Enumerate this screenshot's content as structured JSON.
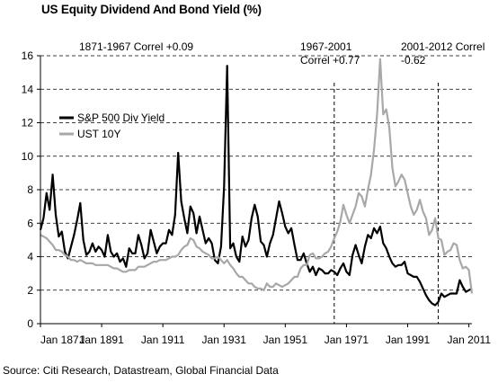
{
  "title": "US Equity Dividend And Bond Yield (%)",
  "source": "Source: Citi Research, Datastream, Global Financial Data",
  "chart_data": {
    "type": "line",
    "xlim": [
      1871,
      2012
    ],
    "ylim": [
      0,
      16
    ],
    "y_ticks": [
      0,
      2,
      4,
      6,
      8,
      10,
      12,
      14,
      16
    ],
    "x_ticks": [
      1871,
      1891,
      1911,
      1931,
      1951,
      1971,
      1991,
      2011
    ],
    "x_tick_labels": [
      "Jan 1871",
      "Jan 1891",
      "Jan 1911",
      "Jan 1931",
      "Jan 1951",
      "Jan 1971",
      "Jan 1991",
      "Jan 2011"
    ],
    "grid": "horizontal dashed",
    "legend_position": "upper-left",
    "annotations": [
      {
        "lines": [
          "1871-1967 Correl +0.09"
        ]
      },
      {
        "lines": [
          "1967-2001",
          "Correl +0.77"
        ]
      },
      {
        "lines": [
          "2001-2012 Correl",
          "-0.62"
        ]
      }
    ],
    "vlines": [
      1967,
      2001
    ],
    "colors": {
      "div": "#000000",
      "ust": "#a8a8a8",
      "grid": "#000000"
    },
    "series": [
      {
        "name": "S&P 500 Div Yield",
        "key": "div",
        "x": [
          1871,
          1872,
          1873,
          1874,
          1875,
          1876,
          1877,
          1878,
          1879,
          1880,
          1881,
          1882,
          1883,
          1884,
          1885,
          1886,
          1887,
          1888,
          1889,
          1890,
          1891,
          1892,
          1893,
          1894,
          1895,
          1896,
          1897,
          1898,
          1899,
          1900,
          1901,
          1902,
          1903,
          1904,
          1905,
          1906,
          1907,
          1908,
          1909,
          1910,
          1911,
          1912,
          1913,
          1914,
          1915,
          1916,
          1917,
          1918,
          1919,
          1920,
          1921,
          1922,
          1923,
          1924,
          1925,
          1926,
          1927,
          1928,
          1929,
          1930,
          1931,
          1932,
          1933,
          1934,
          1935,
          1936,
          1937,
          1938,
          1939,
          1940,
          1941,
          1942,
          1943,
          1944,
          1945,
          1946,
          1947,
          1948,
          1949,
          1950,
          1951,
          1952,
          1953,
          1954,
          1955,
          1956,
          1957,
          1958,
          1959,
          1960,
          1961,
          1962,
          1963,
          1964,
          1965,
          1966,
          1967,
          1968,
          1969,
          1970,
          1971,
          1972,
          1973,
          1974,
          1975,
          1976,
          1977,
          1978,
          1979,
          1980,
          1981,
          1982,
          1983,
          1984,
          1985,
          1986,
          1987,
          1988,
          1989,
          1990,
          1991,
          1992,
          1993,
          1994,
          1995,
          1996,
          1997,
          1998,
          1999,
          2000,
          2001,
          2002,
          2003,
          2004,
          2005,
          2006,
          2007,
          2008,
          2009,
          2010,
          2011,
          2012
        ],
        "values": [
          5.6,
          6.3,
          7.8,
          6.8,
          8.9,
          6.5,
          5.2,
          5.5,
          4.3,
          3.9,
          4.6,
          5.3,
          6.2,
          7.2,
          5.0,
          4.1,
          4.3,
          4.8,
          4.3,
          4.6,
          4.4,
          4.0,
          5.3,
          4.3,
          4.0,
          4.2,
          3.7,
          3.9,
          3.4,
          4.5,
          4.2,
          4.2,
          5.3,
          4.7,
          3.9,
          4.2,
          5.6,
          4.9,
          4.2,
          4.6,
          4.8,
          4.8,
          5.6,
          5.3,
          6.5,
          10.2,
          7.3,
          6.3,
          5.4,
          7.0,
          6.6,
          5.4,
          6.4,
          5.6,
          4.8,
          5.1,
          4.8,
          3.8,
          3.6,
          4.6,
          8.2,
          15.4,
          4.5,
          4.8,
          4.0,
          3.7,
          5.2,
          4.6,
          5.0,
          6.3,
          7.1,
          6.4,
          4.9,
          4.7,
          4.0,
          4.8,
          5.3,
          6.3,
          7.3,
          6.6,
          5.8,
          5.4,
          5.7,
          4.7,
          3.8,
          3.8,
          4.2,
          3.6,
          3.1,
          3.4,
          2.9,
          3.3,
          3.2,
          3.0,
          3.0,
          3.2,
          3.1,
          2.9,
          3.3,
          3.6,
          3.1,
          2.9,
          4.1,
          4.7,
          4.1,
          3.6,
          4.6,
          5.3,
          5.1,
          5.7,
          5.4,
          5.8,
          4.8,
          4.5,
          4.0,
          3.6,
          3.4,
          3.5,
          3.5,
          3.7,
          3.0,
          2.9,
          2.8,
          2.8,
          2.5,
          2.1,
          1.7,
          1.4,
          1.2,
          1.1,
          1.3,
          1.8,
          1.6,
          1.7,
          1.8,
          1.8,
          1.8,
          2.6,
          2.2,
          1.9,
          2.0,
          2.1
        ]
      },
      {
        "name": "UST 10Y",
        "key": "ust",
        "x": [
          1871,
          1872,
          1873,
          1874,
          1875,
          1876,
          1877,
          1878,
          1879,
          1880,
          1881,
          1882,
          1883,
          1884,
          1885,
          1886,
          1887,
          1888,
          1889,
          1890,
          1891,
          1892,
          1893,
          1894,
          1895,
          1896,
          1897,
          1898,
          1899,
          1900,
          1901,
          1902,
          1903,
          1904,
          1905,
          1906,
          1907,
          1908,
          1909,
          1910,
          1911,
          1912,
          1913,
          1914,
          1915,
          1916,
          1917,
          1918,
          1919,
          1920,
          1921,
          1922,
          1923,
          1924,
          1925,
          1926,
          1927,
          1928,
          1929,
          1930,
          1931,
          1932,
          1933,
          1934,
          1935,
          1936,
          1937,
          1938,
          1939,
          1940,
          1941,
          1942,
          1943,
          1944,
          1945,
          1946,
          1947,
          1948,
          1949,
          1950,
          1951,
          1952,
          1953,
          1954,
          1955,
          1956,
          1957,
          1958,
          1959,
          1960,
          1961,
          1962,
          1963,
          1964,
          1965,
          1966,
          1967,
          1968,
          1969,
          1970,
          1971,
          1972,
          1973,
          1974,
          1975,
          1976,
          1977,
          1978,
          1979,
          1980,
          1981,
          1982,
          1983,
          1984,
          1985,
          1986,
          1987,
          1988,
          1989,
          1990,
          1991,
          1992,
          1993,
          1994,
          1995,
          1996,
          1997,
          1998,
          1999,
          2000,
          2001,
          2002,
          2003,
          2004,
          2005,
          2006,
          2007,
          2008,
          2009,
          2010,
          2011,
          2012
        ],
        "values": [
          5.3,
          5.2,
          5.1,
          4.9,
          4.7,
          4.4,
          4.4,
          4.3,
          4.1,
          4.0,
          3.8,
          3.8,
          3.7,
          3.8,
          3.7,
          3.6,
          3.6,
          3.6,
          3.5,
          3.5,
          3.5,
          3.5,
          3.5,
          3.4,
          3.3,
          3.3,
          3.2,
          3.1,
          3.1,
          3.2,
          3.2,
          3.2,
          3.4,
          3.4,
          3.4,
          3.5,
          3.6,
          3.7,
          3.7,
          3.8,
          3.8,
          3.8,
          3.9,
          4.0,
          4.0,
          4.1,
          4.4,
          4.6,
          4.7,
          5.1,
          5.0,
          4.6,
          4.5,
          4.3,
          4.2,
          4.1,
          3.9,
          3.9,
          4.0,
          3.8,
          3.6,
          3.8,
          3.5,
          3.3,
          3.0,
          2.8,
          2.8,
          2.6,
          2.4,
          2.4,
          2.2,
          2.1,
          2.1,
          2.0,
          2.4,
          2.2,
          2.2,
          2.4,
          2.3,
          2.2,
          2.3,
          2.4,
          2.6,
          2.8,
          2.8,
          3.3,
          3.5,
          3.5,
          4.1,
          4.2,
          3.9,
          3.9,
          4.0,
          4.2,
          4.3,
          4.6,
          5.1,
          5.5,
          6.1,
          7.1,
          6.5,
          6.0,
          6.5,
          7.0,
          7.8,
          7.6,
          7.0,
          8.0,
          8.9,
          10.4,
          12.5,
          15.8,
          12.5,
          12.8,
          11.7,
          9.3,
          8.2,
          8.5,
          8.9,
          8.6,
          7.8,
          7.0,
          6.5,
          6.8,
          7.4,
          6.7,
          6.3,
          5.3,
          5.6,
          6.3,
          5.1,
          5.0,
          4.1,
          4.3,
          4.4,
          4.8,
          4.7,
          3.8,
          3.3,
          3.4,
          3.2,
          1.8
        ]
      }
    ]
  }
}
